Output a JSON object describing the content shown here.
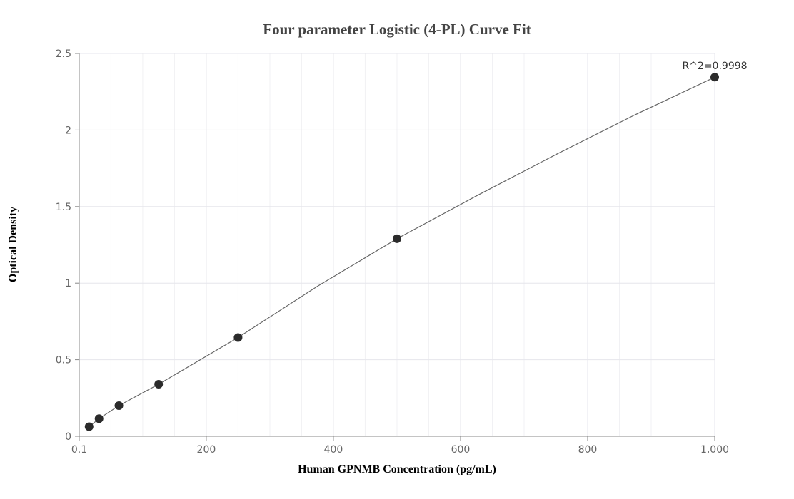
{
  "chart_data": {
    "type": "scatter",
    "title": "Four parameter Logistic (4-PL) Curve Fit",
    "xlabel": "Human GPNMB Concentration (pg/mL)",
    "ylabel": "Optical Density",
    "xlim": [
      0.1,
      1000
    ],
    "ylim": [
      0,
      2.5
    ],
    "x_ticks": [
      0.1,
      200,
      400,
      600,
      800,
      1000
    ],
    "x_tick_labels": [
      "0.1",
      "200",
      "400",
      "600",
      "800",
      "1,000"
    ],
    "y_ticks": [
      0,
      0.5,
      1,
      1.5,
      2,
      2.5
    ],
    "y_tick_labels": [
      "0",
      "0.5",
      "1",
      "1.5",
      "2",
      "2.5"
    ],
    "grid": true,
    "series": [
      {
        "points": [
          {
            "x": 15.6,
            "y": 0.063
          },
          {
            "x": 31.25,
            "y": 0.115
          },
          {
            "x": 62.5,
            "y": 0.2
          },
          {
            "x": 125,
            "y": 0.34
          },
          {
            "x": 250,
            "y": 0.645
          },
          {
            "x": 500,
            "y": 1.29
          },
          {
            "x": 1000,
            "y": 2.345
          }
        ]
      }
    ],
    "fit_curve": {
      "x": [
        15.6,
        31.25,
        62.5,
        125,
        250,
        375,
        500,
        625,
        750,
        875,
        1000
      ],
      "y": [
        0.063,
        0.115,
        0.2,
        0.34,
        0.645,
        0.98,
        1.29,
        1.57,
        1.84,
        2.1,
        2.345
      ]
    },
    "annotation": "R^2=0.9998",
    "colors": {
      "point": "#2b2b2b",
      "curve": "#666666",
      "grid": "#e6e6ec",
      "axis": "#888888"
    }
  }
}
